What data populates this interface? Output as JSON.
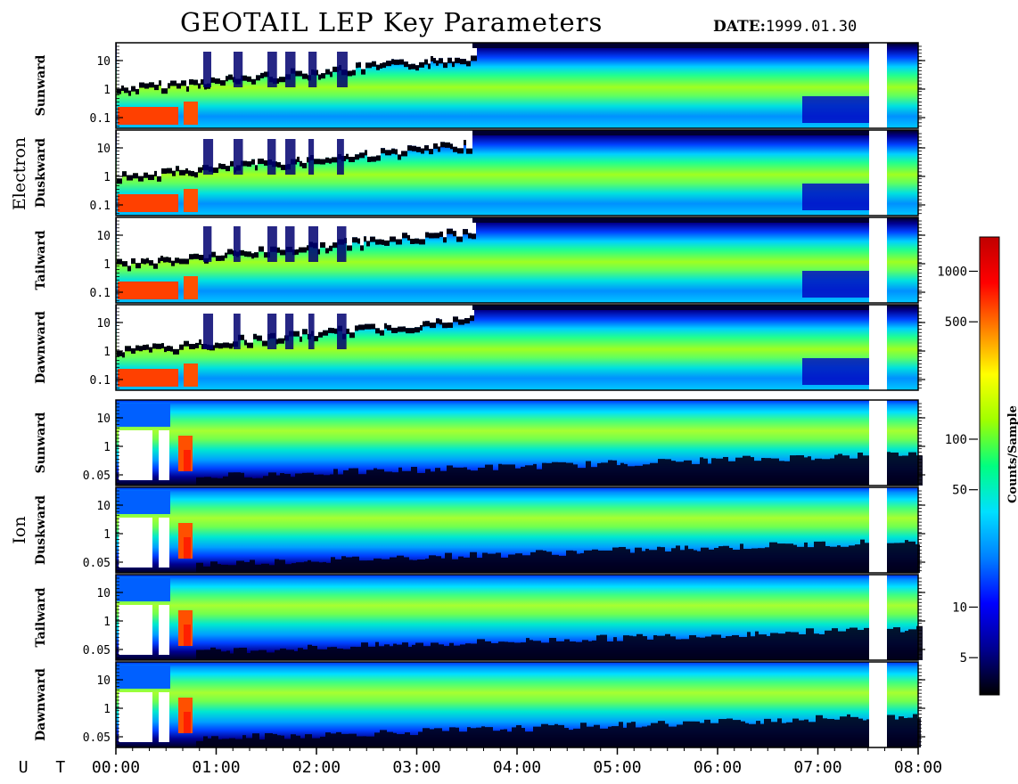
{
  "header": {
    "title": "GEOTAIL LEP Key Parameters",
    "date_label": "DATE:",
    "date_value": "1999.01.30"
  },
  "chart_data": {
    "type": "heatmap",
    "title": "GEOTAIL LEP Key Parameters",
    "x": {
      "axis_label": "U T",
      "range": [
        "00:00",
        "08:00"
      ],
      "ticks": [
        "00:00",
        "01:00",
        "02:00",
        "03:00",
        "04:00",
        "05:00",
        "06:00",
        "07:00",
        "08:00"
      ]
    },
    "groups": [
      {
        "name": "Electron",
        "y_ticks": [
          "10",
          "1",
          "0.1"
        ],
        "y_scale": "log",
        "panels": [
          {
            "label": "Sunward"
          },
          {
            "label": "Duskward"
          },
          {
            "label": "Tailward"
          },
          {
            "label": "Dawnward"
          }
        ]
      },
      {
        "name": "Ion",
        "y_ticks": [
          "10",
          "1",
          "0.05"
        ],
        "y_scale": "log",
        "panels": [
          {
            "label": "Sunward"
          },
          {
            "label": "Duskward"
          },
          {
            "label": "Tailward"
          },
          {
            "label": "Dawnward"
          }
        ]
      }
    ],
    "data_gap": {
      "start": "07:30",
      "end": "07:38"
    },
    "colorbar": {
      "label": "Counts/Sample",
      "scale": "log",
      "ticks": [
        "1000",
        "500",
        "100",
        "50",
        "10",
        "5"
      ],
      "colors": [
        "#000000",
        "#000090",
        "#0000ff",
        "#0080ff",
        "#00e0ff",
        "#00ff80",
        "#a0ff00",
        "#ffff00",
        "#ff8000",
        "#ff0000",
        "#c00000"
      ]
    }
  }
}
